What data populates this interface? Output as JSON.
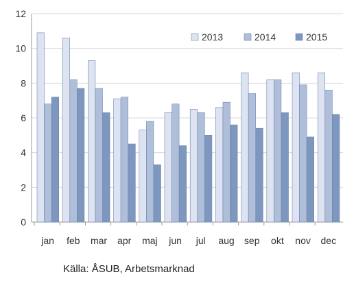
{
  "chart_data": {
    "type": "bar",
    "categories": [
      "jan",
      "feb",
      "mar",
      "apr",
      "maj",
      "jun",
      "jul",
      "aug",
      "sep",
      "okt",
      "nov",
      "dec"
    ],
    "series": [
      {
        "name": "2013",
        "color": "#dde3f0",
        "values": [
          10.9,
          10.6,
          9.3,
          7.1,
          5.3,
          6.3,
          6.5,
          6.6,
          8.6,
          8.2,
          8.6,
          8.6
        ]
      },
      {
        "name": "2014",
        "color": "#b0bfd9",
        "values": [
          6.8,
          8.2,
          7.7,
          7.2,
          5.8,
          6.8,
          6.3,
          6.9,
          7.4,
          8.2,
          7.9,
          7.6
        ]
      },
      {
        "name": "2015",
        "color": "#7e97bf",
        "values": [
          7.2,
          7.7,
          6.3,
          4.5,
          3.3,
          4.4,
          5.0,
          5.6,
          5.4,
          6.3,
          4.9,
          6.2
        ]
      }
    ],
    "ylim": [
      0,
      12
    ],
    "yticks": [
      0,
      2,
      4,
      6,
      8,
      10,
      12
    ],
    "grid": true,
    "legend": "top-right",
    "xlabel": "",
    "ylabel": ""
  },
  "source": "Källa: ÅSUB, Arbetsmarknad"
}
